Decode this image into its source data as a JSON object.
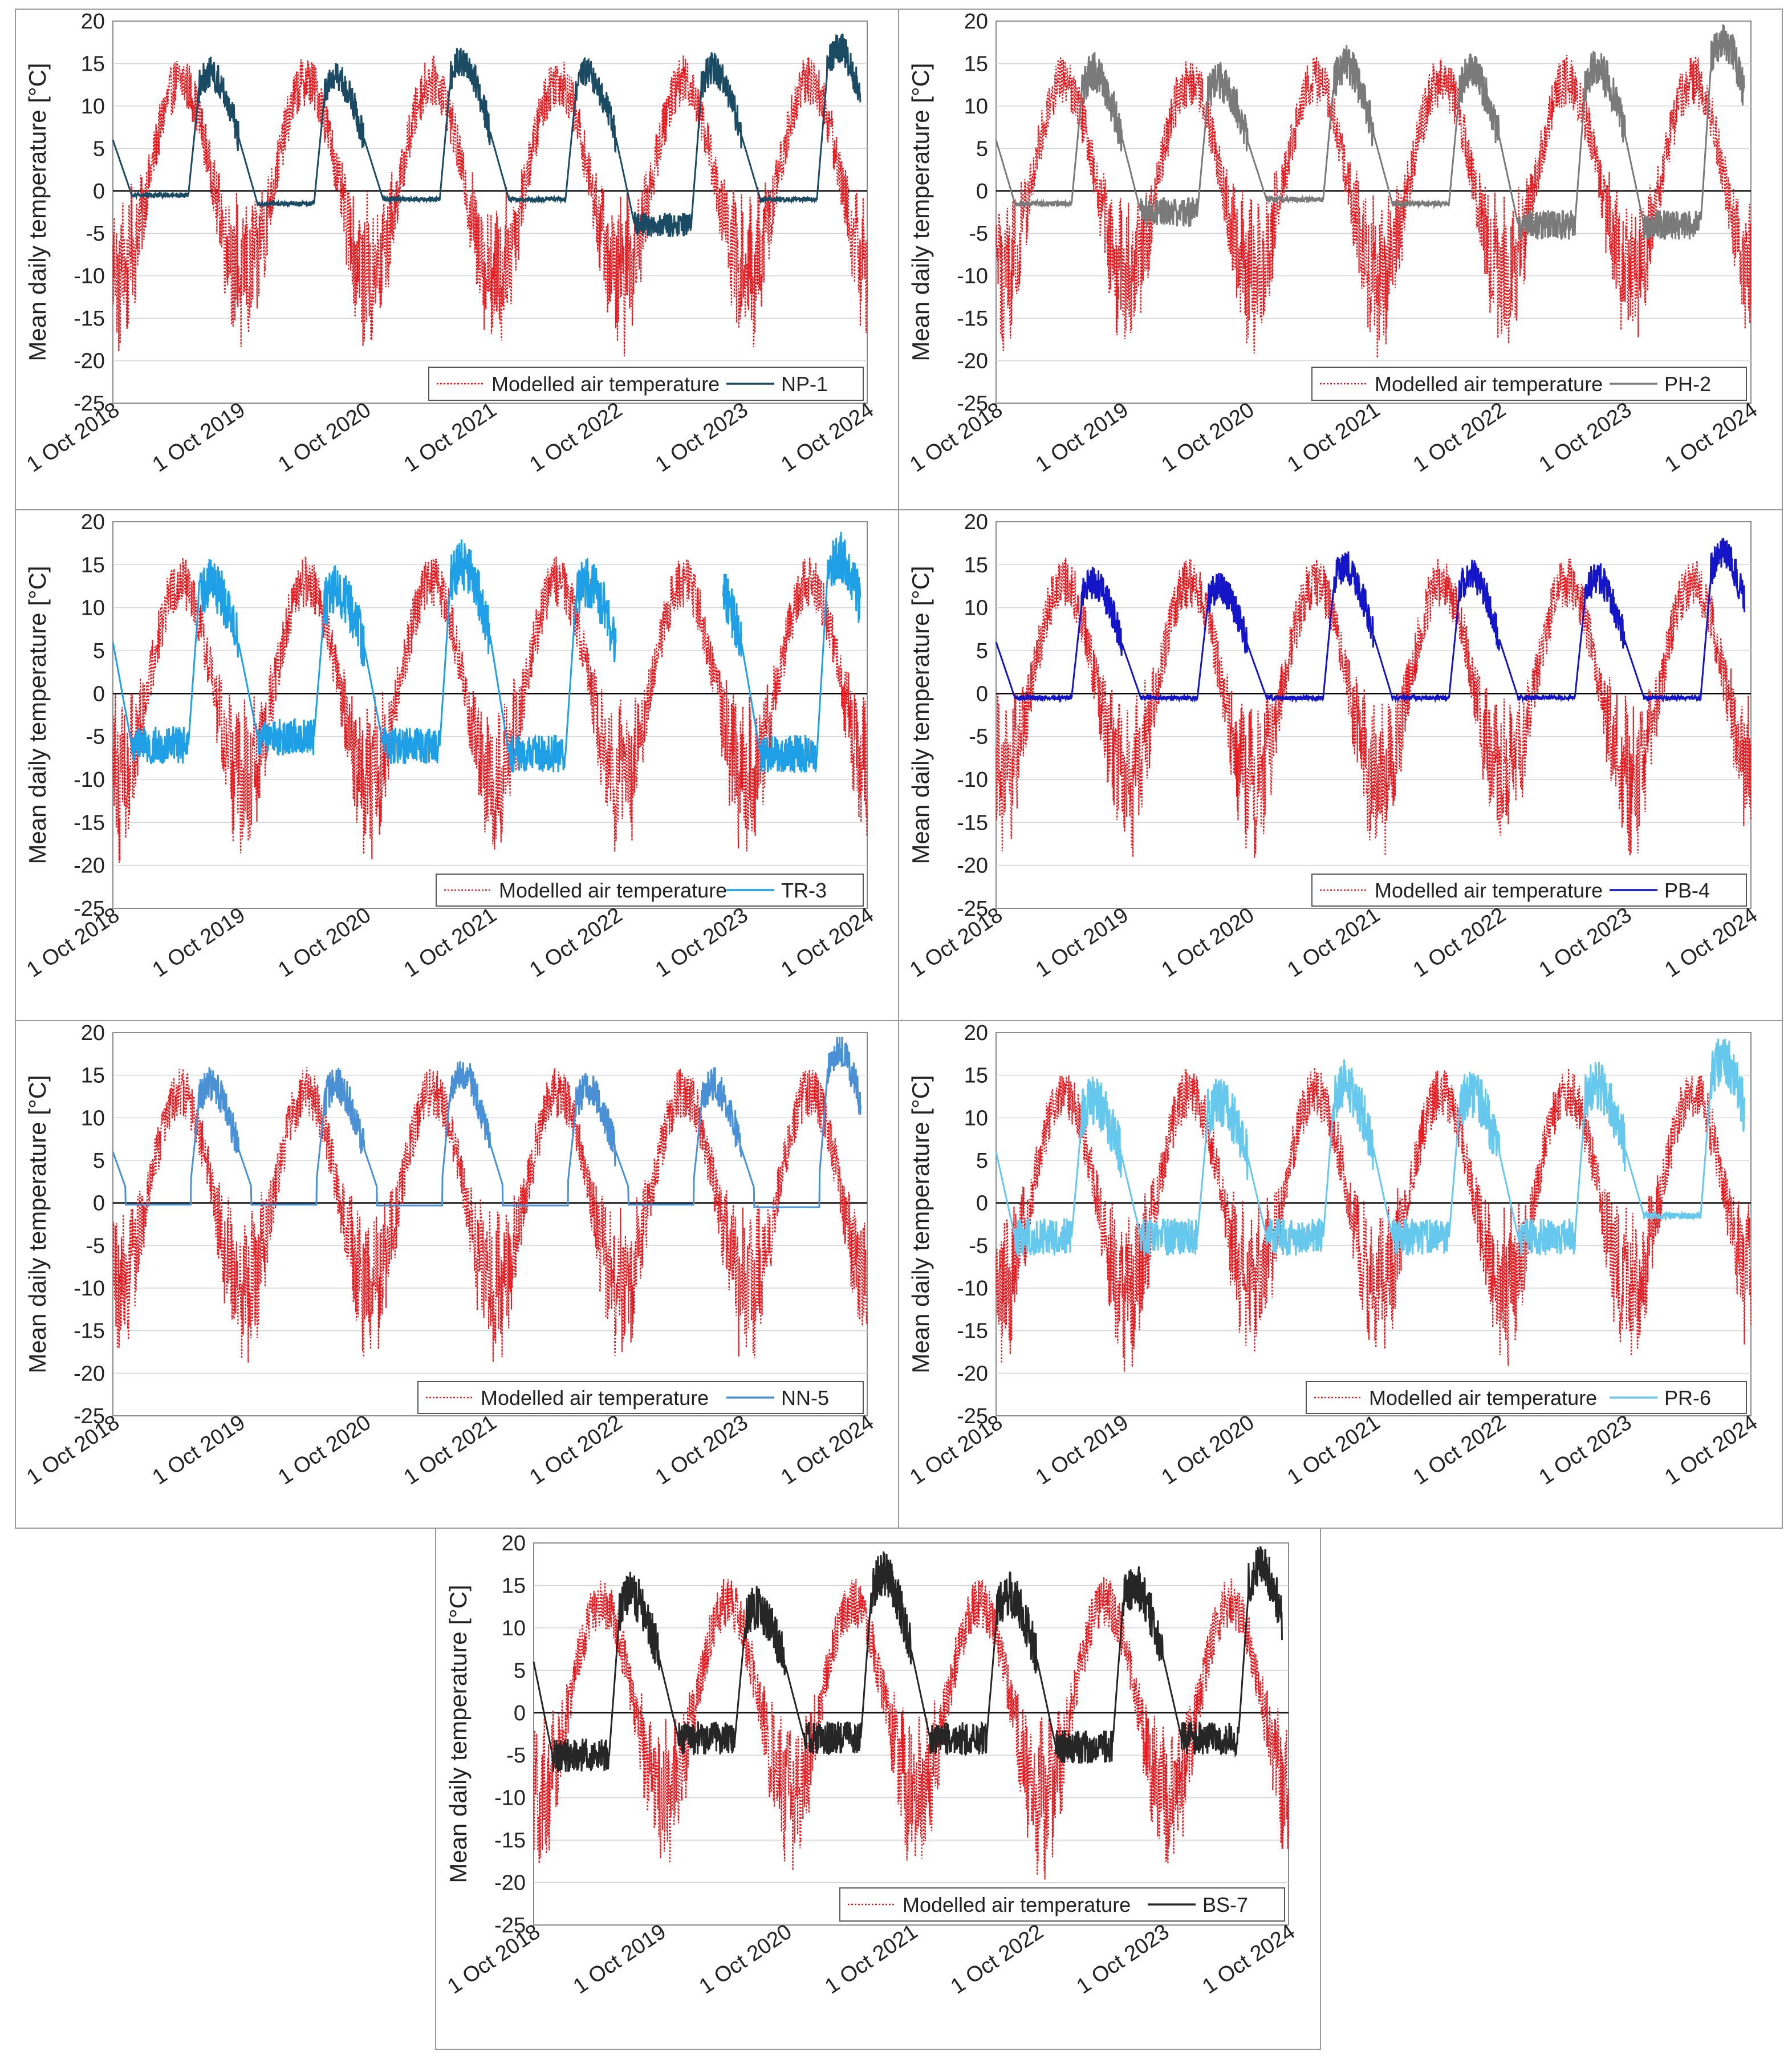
{
  "chart_data": [
    {
      "id": "NP-1",
      "type": "line",
      "ylabel": "Mean daily temperature [°C]",
      "ylim": [
        -25,
        20
      ],
      "yticks": [
        20,
        15,
        10,
        5,
        0,
        -5,
        -10,
        -15,
        -20,
        -25
      ],
      "xticks": [
        "1 Oct 2018",
        "1 Oct 2019",
        "1 Oct 2020",
        "1 Oct 2021",
        "1 Oct 2022",
        "1 Oct 2023",
        "1 Oct 2024"
      ],
      "legend": [
        {
          "name": "Modelled air temperature",
          "color": "#e8191e",
          "style": "dotted"
        },
        {
          "name": "NP-1",
          "color": "#1b4a63",
          "style": "solid"
        }
      ],
      "winter_plateau": [
        -0.5,
        -1.5,
        -1.0,
        -1.0,
        -4.0,
        -1.0
      ],
      "summer_peak": [
        14,
        13.5,
        15.5,
        14,
        14.5,
        17
      ],
      "spring_rise": 0.2,
      "end_year_fraction": 5.95,
      "noise": 1.3
    },
    {
      "id": "PH-2",
      "type": "line",
      "ylabel": "Mean daily temperature [°C]",
      "ylim": [
        -25,
        20
      ],
      "yticks": [
        20,
        15,
        10,
        5,
        0,
        -5,
        -10,
        -15,
        -20,
        -25
      ],
      "xticks": [
        "1 Oct 2018",
        "1 Oct 2019",
        "1 Oct 2020",
        "1 Oct 2021",
        "1 Oct 2022",
        "1 Oct 2023",
        "1 Oct 2024"
      ],
      "legend": [
        {
          "name": "Modelled air temperature",
          "color": "#e8191e",
          "style": "dotted"
        },
        {
          "name": "PH-2",
          "color": "#7a7a7a",
          "style": "solid"
        }
      ],
      "winter_plateau": [
        -1.5,
        -2.5,
        -1.0,
        -1.5,
        -4.0,
        -4.0
      ],
      "summer_peak": [
        14,
        13,
        15,
        14,
        14.5,
        18
      ],
      "spring_rise": 0.2,
      "end_year_fraction": 5.95,
      "noise": 1.6
    },
    {
      "id": "TR-3",
      "type": "line",
      "ylabel": "Mean daily temperature [°C]",
      "ylim": [
        -25,
        20
      ],
      "yticks": [
        20,
        15,
        10,
        5,
        0,
        -5,
        -10,
        -15,
        -20,
        -25
      ],
      "xticks": [
        "1 Oct 2018",
        "1 Oct 2019",
        "1 Oct 2020",
        "1 Oct 2021",
        "1 Oct 2022",
        "1 Oct 2023",
        "1 Oct 2024"
      ],
      "legend": [
        {
          "name": "Modelled air temperature",
          "color": "#e8191e",
          "style": "dotted"
        },
        {
          "name": "TR-3",
          "color": "#1fa0e6",
          "style": "solid"
        }
      ],
      "winter_plateau": [
        -6,
        -5,
        -6,
        -7,
        null,
        -7
      ],
      "summer_peak": [
        13,
        12,
        15,
        13,
        null,
        16
      ],
      "spring_rise": 0.2,
      "gap": [
        4.0,
        4.85
      ],
      "end_year_fraction": 5.95,
      "noise": 2.0
    },
    {
      "id": "PB-4",
      "type": "line",
      "ylabel": "Mean daily temperature [°C]",
      "ylim": [
        -25,
        20
      ],
      "yticks": [
        20,
        15,
        10,
        5,
        0,
        -5,
        -10,
        -15,
        -20,
        -25
      ],
      "xticks": [
        "1 Oct 2018",
        "1 Oct 2019",
        "1 Oct 2020",
        "1 Oct 2021",
        "1 Oct 2022",
        "1 Oct 2023",
        "1 Oct 2024"
      ],
      "legend": [
        {
          "name": "Modelled air temperature",
          "color": "#e8191e",
          "style": "dotted"
        },
        {
          "name": "PB-4",
          "color": "#1515c8",
          "style": "solid"
        }
      ],
      "winter_plateau": [
        -0.5,
        -0.5,
        -0.5,
        -0.5,
        -0.5,
        -0.5
      ],
      "summer_peak": [
        13,
        12.5,
        15,
        14,
        13.5,
        16.5
      ],
      "spring_rise": 0.1,
      "end_year_fraction": 5.95,
      "noise": 1.3
    },
    {
      "id": "NN-5",
      "type": "line",
      "ylabel": "Mean daily temperature [°C]",
      "ylim": [
        -25,
        20
      ],
      "yticks": [
        20,
        15,
        10,
        5,
        0,
        -5,
        -10,
        -15,
        -20,
        -25
      ],
      "xticks": [
        "1 Oct 2018",
        "1 Oct 2019",
        "1 Oct 2020",
        "1 Oct 2021",
        "1 Oct 2022",
        "1 Oct 2023",
        "1 Oct 2024"
      ],
      "legend": [
        {
          "name": "Modelled air temperature",
          "color": "#e8191e",
          "style": "dotted"
        },
        {
          "name": "NN-5",
          "color": "#4a90d4",
          "style": "solid"
        }
      ],
      "winter_plateau": [
        -0.2,
        -0.2,
        -0.3,
        -0.3,
        -0.2,
        -0.5
      ],
      "summer_peak": [
        14,
        14,
        15.5,
        13.5,
        14,
        18
      ],
      "spring_rise": 0.05,
      "end_year_fraction": 5.95,
      "noise": 1.4
    },
    {
      "id": "PR-6",
      "type": "line",
      "ylabel": "Mean daily temperature [°C]",
      "ylim": [
        -25,
        20
      ],
      "yticks": [
        20,
        15,
        10,
        5,
        0,
        -5,
        -10,
        -15,
        -20,
        -25
      ],
      "xticks": [
        "1 Oct 2018",
        "1 Oct 2019",
        "1 Oct 2020",
        "1 Oct 2021",
        "1 Oct 2022",
        "1 Oct 2023",
        "1 Oct 2024"
      ],
      "legend": [
        {
          "name": "Modelled air temperature",
          "color": "#e8191e",
          "style": "dotted"
        },
        {
          "name": "PR-6",
          "color": "#66c8ec",
          "style": "solid"
        }
      ],
      "winter_plateau": [
        -4,
        -4,
        -4,
        -4,
        -4,
        -1.5
      ],
      "summer_peak": [
        12,
        12,
        14,
        13,
        14,
        17
      ],
      "spring_rise": 0.2,
      "end_year_fraction": 5.95,
      "noise": 2.0
    },
    {
      "id": "BS-7",
      "type": "line",
      "ylabel": "Mean daily temperature [°C]",
      "ylim": [
        -25,
        20
      ],
      "yticks": [
        20,
        15,
        10,
        5,
        0,
        -5,
        -10,
        -15,
        -20,
        -25
      ],
      "xticks": [
        "1 Oct 2018",
        "1 Oct 2019",
        "1 Oct 2020",
        "1 Oct 2021",
        "1 Oct 2022",
        "1 Oct 2023",
        "1 Oct 2024"
      ],
      "legend": [
        {
          "name": "Modelled air temperature",
          "color": "#e8191e",
          "style": "dotted"
        },
        {
          "name": "BS-7",
          "color": "#262626",
          "style": "solid"
        }
      ],
      "winter_plateau": [
        -5,
        -3,
        -3,
        -3,
        -4,
        -3
      ],
      "summer_peak": [
        14,
        12.5,
        16.5,
        14,
        15,
        17.5
      ],
      "spring_rise": 0.2,
      "end_year_fraction": 5.95,
      "noise": 1.8
    }
  ]
}
